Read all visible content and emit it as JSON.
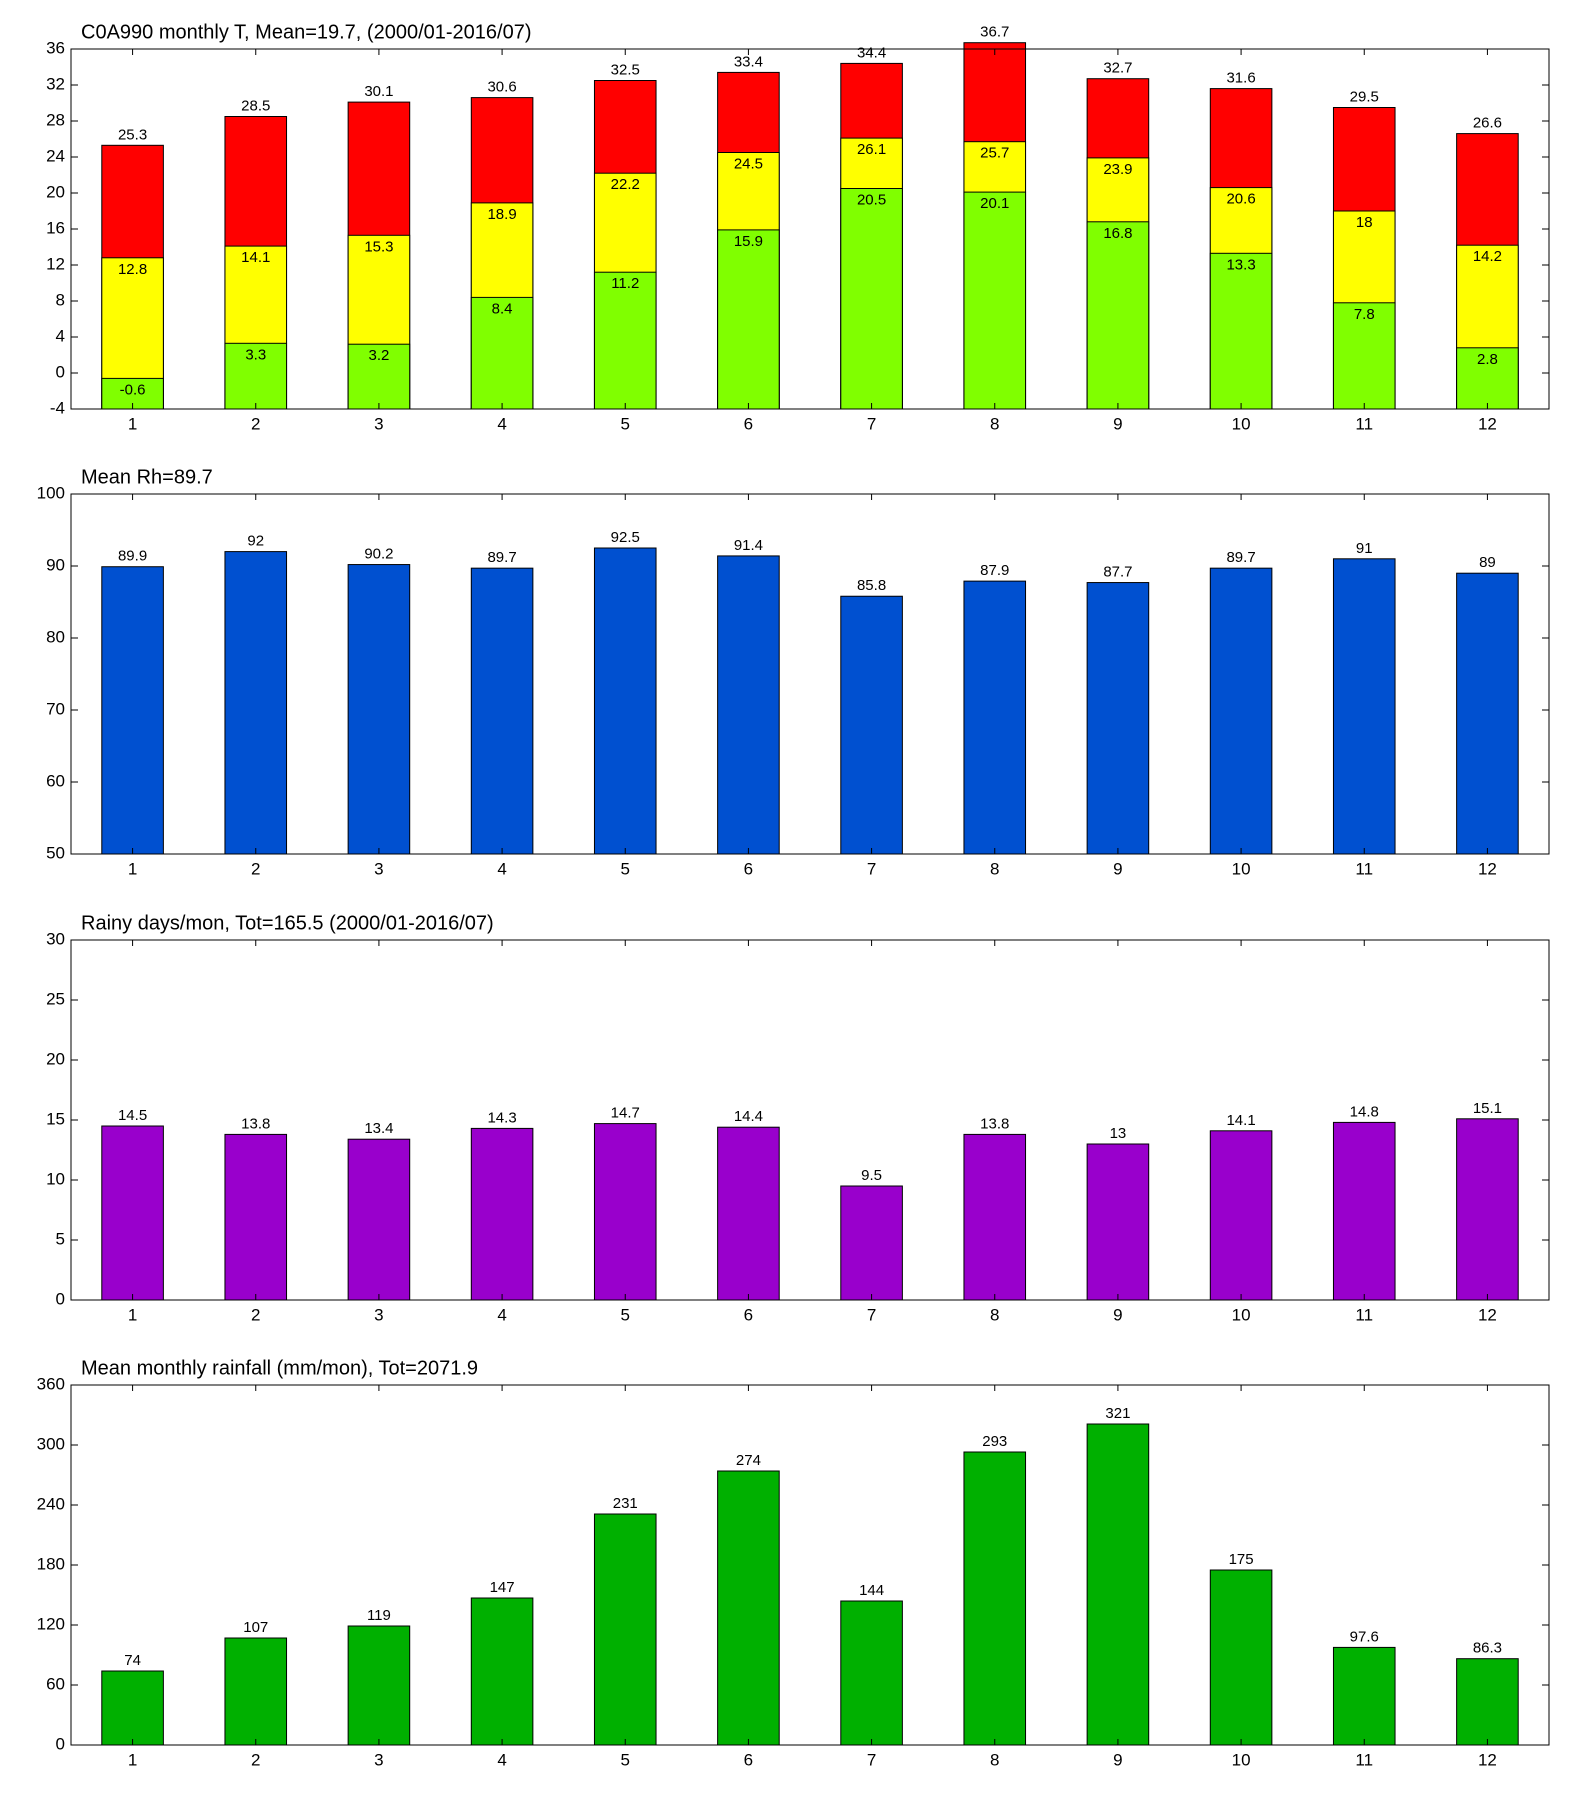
{
  "chart_data": [
    {
      "type": "bar",
      "title": "C0A990 monthly T, Mean=19.7, (2000/01-2016/07)",
      "categories": [
        "1",
        "2",
        "3",
        "4",
        "5",
        "6",
        "7",
        "8",
        "9",
        "10",
        "11",
        "12"
      ],
      "series": [
        {
          "color": "#ff0000",
          "values": [
            25.3,
            28.5,
            30.1,
            30.6,
            32.5,
            33.4,
            34.4,
            36.7,
            32.7,
            31.6,
            29.5,
            26.6
          ]
        },
        {
          "color": "#ffff00",
          "values": [
            12.8,
            14.1,
            15.3,
            18.9,
            22.2,
            24.5,
            26.1,
            25.7,
            23.9,
            20.6,
            18,
            14.2
          ]
        },
        {
          "color": "#80ff00",
          "values": [
            -0.6,
            3.3,
            3.2,
            8.4,
            11.2,
            15.9,
            20.5,
            20.1,
            16.8,
            13.3,
            7.8,
            2.8
          ]
        }
      ],
      "ylim": [
        -4,
        36
      ],
      "yticks": [
        -4,
        0,
        4,
        8,
        12,
        16,
        20,
        24,
        28,
        32,
        36
      ]
    },
    {
      "type": "bar",
      "title": "Mean Rh=89.7",
      "categories": [
        "1",
        "2",
        "3",
        "4",
        "5",
        "6",
        "7",
        "8",
        "9",
        "10",
        "11",
        "12"
      ],
      "values": [
        89.9,
        92,
        90.2,
        89.7,
        92.5,
        91.4,
        85.8,
        87.9,
        87.7,
        89.7,
        91,
        89
      ],
      "color": "#0050d0",
      "ylim": [
        50,
        100
      ],
      "yticks": [
        50,
        60,
        70,
        80,
        90,
        100
      ]
    },
    {
      "type": "bar",
      "title": "Rainy days/mon, Tot=165.5 (2000/01-2016/07)",
      "categories": [
        "1",
        "2",
        "3",
        "4",
        "5",
        "6",
        "7",
        "8",
        "9",
        "10",
        "11",
        "12"
      ],
      "values": [
        14.5,
        13.8,
        13.4,
        14.3,
        14.7,
        14.4,
        9.5,
        13.8,
        13,
        14.1,
        14.8,
        15.1
      ],
      "color": "#9900cc",
      "ylim": [
        0,
        30
      ],
      "yticks": [
        0,
        5,
        10,
        15,
        20,
        25,
        30
      ]
    },
    {
      "type": "bar",
      "title": "Mean monthly rainfall (mm/mon), Tot=2071.9",
      "categories": [
        "1",
        "2",
        "3",
        "4",
        "5",
        "6",
        "7",
        "8",
        "9",
        "10",
        "11",
        "12"
      ],
      "values": [
        74,
        107,
        119,
        147,
        231,
        274,
        144,
        293,
        321,
        175,
        97.6,
        86.3
      ],
      "color": "#00b000",
      "ylim": [
        0,
        360
      ],
      "yticks": [
        0,
        60,
        120,
        180,
        240,
        300,
        360
      ]
    }
  ]
}
